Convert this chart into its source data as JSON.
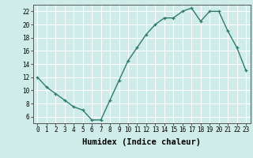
{
  "x": [
    0,
    1,
    2,
    3,
    4,
    5,
    6,
    7,
    8,
    9,
    10,
    11,
    12,
    13,
    14,
    15,
    16,
    17,
    18,
    19,
    20,
    21,
    22,
    23
  ],
  "y": [
    12,
    10.5,
    9.5,
    8.5,
    7.5,
    7.0,
    5.5,
    5.5,
    8.5,
    11.5,
    14.5,
    16.5,
    18.5,
    20.0,
    21.0,
    21.0,
    22.0,
    22.5,
    20.5,
    22.0,
    22.0,
    19.0,
    16.5,
    13.0
  ],
  "line_color": "#2e7b6e",
  "marker": "+",
  "marker_size": 3.5,
  "bg_color": "#d0ece8",
  "grid_color": "#ffffff",
  "grid_color_minor": "#e8f4f2",
  "xlabel": "Humidex (Indice chaleur)",
  "xlim": [
    -0.5,
    23.5
  ],
  "ylim": [
    5,
    23
  ],
  "xticks": [
    0,
    1,
    2,
    3,
    4,
    5,
    6,
    7,
    8,
    9,
    10,
    11,
    12,
    13,
    14,
    15,
    16,
    17,
    18,
    19,
    20,
    21,
    22,
    23
  ],
  "yticks": [
    6,
    8,
    10,
    12,
    14,
    16,
    18,
    20,
    22
  ],
  "tick_fontsize": 5.5,
  "xlabel_fontsize": 7.5,
  "line_width": 1.0
}
